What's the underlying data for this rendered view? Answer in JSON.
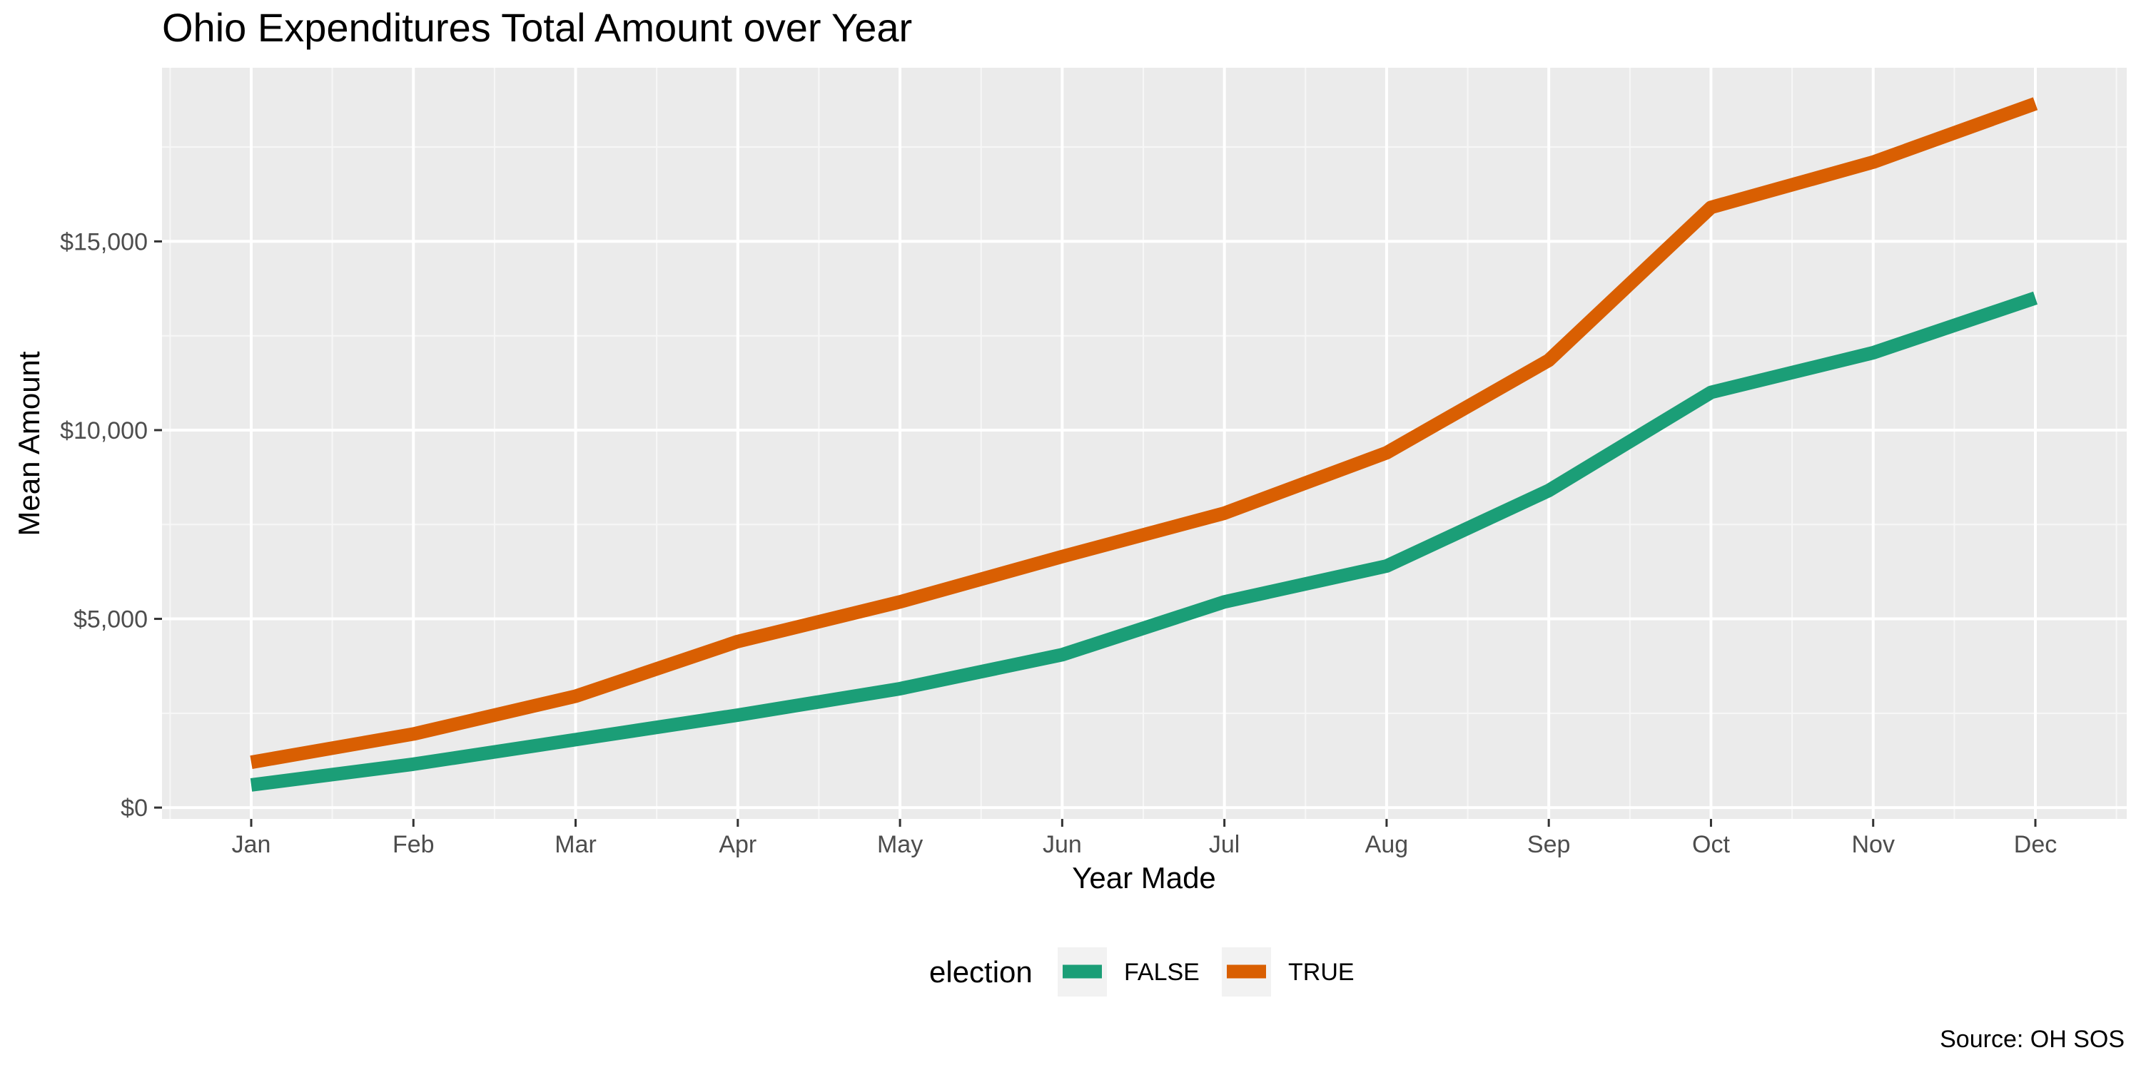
{
  "chart_data": {
    "type": "line",
    "title": "Ohio Expenditures Total Amount over Year",
    "xlabel": "Year Made",
    "ylabel": "Mean Amount",
    "caption": "Source: OH SOS",
    "categories": [
      "Jan",
      "Feb",
      "Mar",
      "Apr",
      "May",
      "Jun",
      "Jul",
      "Aug",
      "Sep",
      "Oct",
      "Nov",
      "Dec"
    ],
    "ylim": [
      -300,
      19600
    ],
    "yticks": [
      0,
      5000,
      10000,
      15000
    ],
    "ytick_labels": [
      "$0",
      "$5,000",
      "$10,000",
      "$15,000"
    ],
    "grid": true,
    "legend": {
      "title": "election",
      "position": "bottom"
    },
    "series": [
      {
        "name": "FALSE",
        "color": "#1b9e77",
        "values": [
          600,
          1150,
          1800,
          2450,
          3150,
          4050,
          5450,
          6400,
          8400,
          11000,
          12050,
          13500
        ]
      },
      {
        "name": "TRUE",
        "color": "#d95f02",
        "values": [
          1200,
          1950,
          2950,
          4400,
          5450,
          6650,
          7800,
          9400,
          11850,
          15900,
          17100,
          18650
        ]
      }
    ]
  }
}
